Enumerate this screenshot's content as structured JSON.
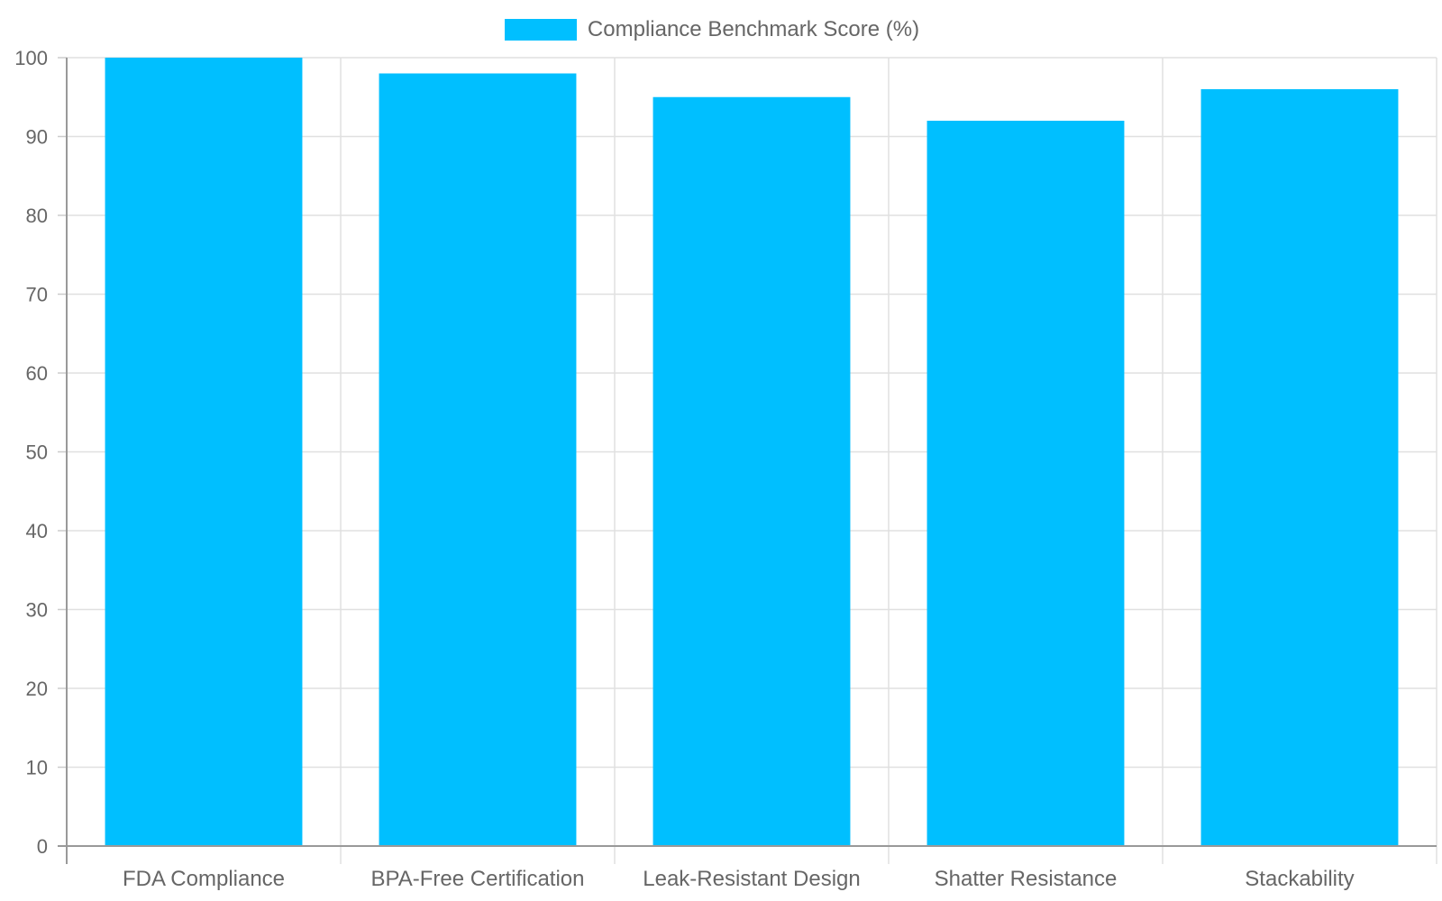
{
  "chart_data": {
    "type": "bar",
    "categories": [
      "FDA Compliance",
      "BPA-Free Certification",
      "Leak-Resistant Design",
      "Shatter Resistance",
      "Stackability"
    ],
    "series": [
      {
        "name": "Compliance Benchmark Score (%)",
        "values": [
          100,
          98,
          95,
          92,
          96
        ],
        "color": "#00BFFF"
      }
    ],
    "ylim": [
      0,
      100
    ],
    "yticks": [
      0,
      10,
      20,
      30,
      40,
      50,
      60,
      70,
      80,
      90,
      100
    ],
    "grid": true,
    "legend_position": "top"
  }
}
